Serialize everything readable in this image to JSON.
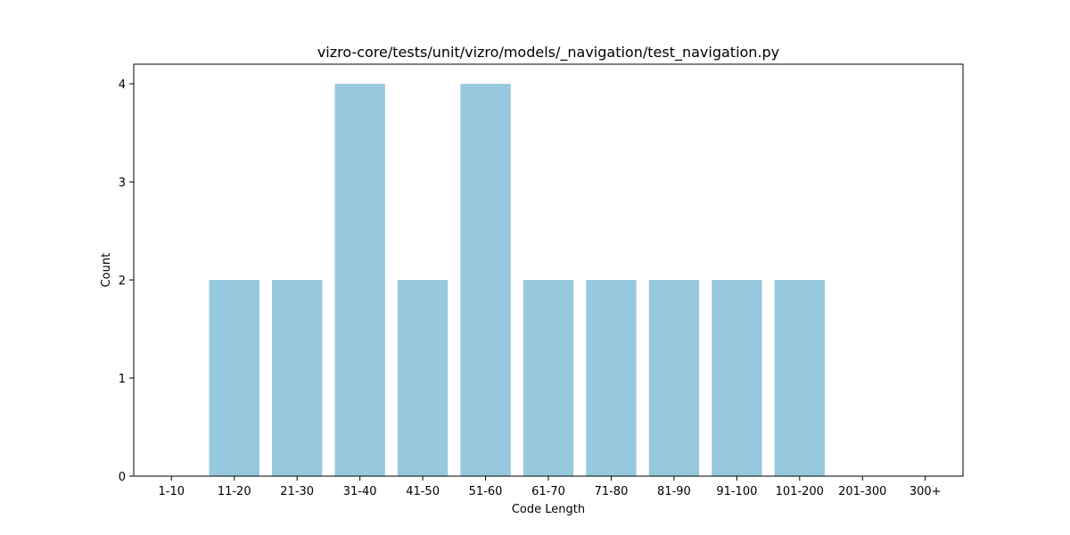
{
  "chart_data": {
    "type": "bar",
    "title": "vizro-core/tests/unit/vizro/models/_navigation/test_navigation.py",
    "xlabel": "Code Length",
    "ylabel": "Count",
    "categories": [
      "1-10",
      "11-20",
      "21-30",
      "31-40",
      "41-50",
      "51-60",
      "61-70",
      "71-80",
      "81-90",
      "91-100",
      "101-200",
      "201-300",
      "300+"
    ],
    "values": [
      0,
      2,
      2,
      4,
      2,
      4,
      2,
      2,
      2,
      2,
      2,
      0,
      0
    ],
    "ylim": [
      0,
      4.2
    ],
    "yticks": [
      0,
      1,
      2,
      3,
      4
    ],
    "bar_color": "#96c9dd",
    "grid": false,
    "legend": false
  }
}
